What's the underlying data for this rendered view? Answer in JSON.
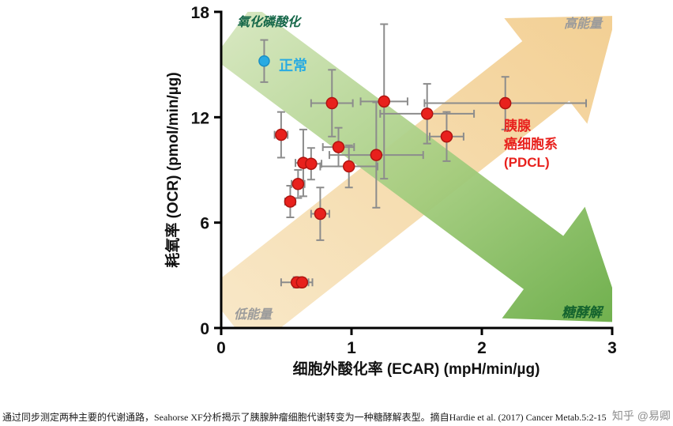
{
  "chart_data": {
    "type": "scatter",
    "xlabel": "细胞外酸化率 (ECAR) (mpH/min/µg)",
    "ylabel": "耗氧率 (OCR) (pmol/min/µg)",
    "xlim": [
      0,
      3
    ],
    "ylim": [
      0,
      18
    ],
    "xticks": [
      0,
      1,
      2,
      3
    ],
    "yticks": [
      0,
      6,
      12,
      18
    ],
    "grid": false,
    "errorbar_color": "#8c8c8c",
    "region_labels": {
      "top_left": "氧化磷酸化",
      "top_right": "高能量",
      "bottom_left": "低能量",
      "bottom_right": "糖酵解"
    },
    "arrow_colors": {
      "high_energy_light": "#f8e8c8",
      "high_energy_dark": "#f2cd8e",
      "glycolysis_light": "#d9e8c2",
      "glycolysis_dark": "#67ab43"
    },
    "series": [
      {
        "name": "正常",
        "color": "#29abe2",
        "edge": "#1b8fc4",
        "marker_r": 6.5,
        "points": [
          {
            "x": 0.33,
            "y": 15.2,
            "xerr": 0,
            "yerr": 1.2
          }
        ]
      },
      {
        "name": "胰腺癌细胞系 (PDCL)",
        "color": "#e8211d",
        "edge": "#b01510",
        "marker_r": 7,
        "points": [
          {
            "x": 0.46,
            "y": 11.0,
            "xerr": 0.05,
            "yerr": 1.3
          },
          {
            "x": 0.53,
            "y": 7.2,
            "xerr": 0.04,
            "yerr": 0.9
          },
          {
            "x": 0.59,
            "y": 8.2,
            "xerr": 0.05,
            "yerr": 0.8
          },
          {
            "x": 0.63,
            "y": 9.4,
            "xerr": 0.06,
            "yerr": 1.9
          },
          {
            "x": 0.69,
            "y": 9.35,
            "xerr": 0.08,
            "yerr": 0.9
          },
          {
            "x": 0.76,
            "y": 6.5,
            "xerr": 0.07,
            "yerr": 1.5
          },
          {
            "x": 0.85,
            "y": 12.8,
            "xerr": 0.16,
            "yerr": 1.9
          },
          {
            "x": 0.9,
            "y": 10.3,
            "xerr": 0.12,
            "yerr": 1.1
          },
          {
            "x": 0.98,
            "y": 9.2,
            "xerr": 0.22,
            "yerr": 1.2
          },
          {
            "x": 1.19,
            "y": 9.85,
            "xerr": 0.36,
            "yerr": 3.0
          },
          {
            "x": 1.25,
            "y": 12.9,
            "xerr": 0.18,
            "yerr": 4.4
          },
          {
            "x": 1.58,
            "y": 12.2,
            "xerr": 0.36,
            "yerr": 1.7
          },
          {
            "x": 1.73,
            "y": 10.9,
            "xerr": 0.13,
            "yerr": 1.4
          },
          {
            "x": 2.18,
            "y": 12.8,
            "xerr": 0.62,
            "yerr": 1.5
          },
          {
            "x": 0.58,
            "y": 2.6,
            "xerr": 0.12,
            "yerr": 0.3
          },
          {
            "x": 0.62,
            "y": 2.6,
            "xerr": 0.05,
            "yerr": 0.25
          }
        ]
      }
    ]
  },
  "annotations": {
    "normal_label": "正常",
    "pdcl_line1": "胰腺",
    "pdcl_line2": "癌细胞系",
    "pdcl_line3": "(PDCL)"
  },
  "caption": {
    "text": "通过同步测定两种主要的代谢通路，Seahorse XF分析揭示了胰腺肿瘤细胞代谢转变为一种糖酵解表型。摘自Hardie et al. (2017) Cancer Metab.5:2-15.",
    "watermark": "知乎 @易卿"
  }
}
